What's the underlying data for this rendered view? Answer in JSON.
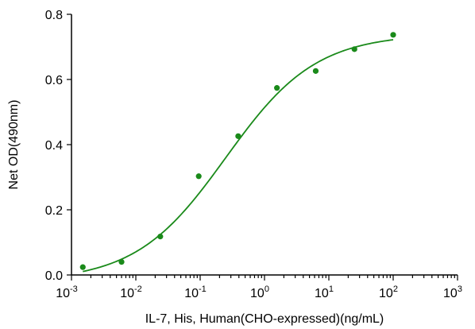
{
  "chart_data": {
    "type": "scatter",
    "title": "",
    "xlabel": "IL-7, His, Human(CHO-expressed)(ng/mL)",
    "ylabel": "Net OD(490nm)",
    "x_scale": "log",
    "xlim": [
      0.001,
      1000
    ],
    "ylim": [
      0,
      0.8
    ],
    "x_ticks": [
      {
        "base": "10",
        "exp": "-3"
      },
      {
        "base": "10",
        "exp": "-2"
      },
      {
        "base": "10",
        "exp": "-1"
      },
      {
        "base": "10",
        "exp": "0"
      },
      {
        "base": "10",
        "exp": "1"
      },
      {
        "base": "10",
        "exp": "2"
      },
      {
        "base": "10",
        "exp": "3"
      }
    ],
    "y_ticks": [
      "0.0",
      "0.2",
      "0.4",
      "0.6",
      "0.8"
    ],
    "grid": false,
    "legend": "none",
    "color": "#1a8a1a",
    "series": [
      {
        "x": [
          0.0015,
          0.006,
          0.024,
          0.095,
          0.39,
          1.56,
          6.25,
          25,
          100
        ],
        "y": [
          0.024,
          0.04,
          0.118,
          0.303,
          0.426,
          0.574,
          0.626,
          0.693,
          0.737
        ]
      }
    ],
    "fit_curve": {
      "model": "4PL",
      "bottom": -0.02,
      "top": 0.74,
      "ec50": 0.25,
      "hill": 0.62
    }
  }
}
